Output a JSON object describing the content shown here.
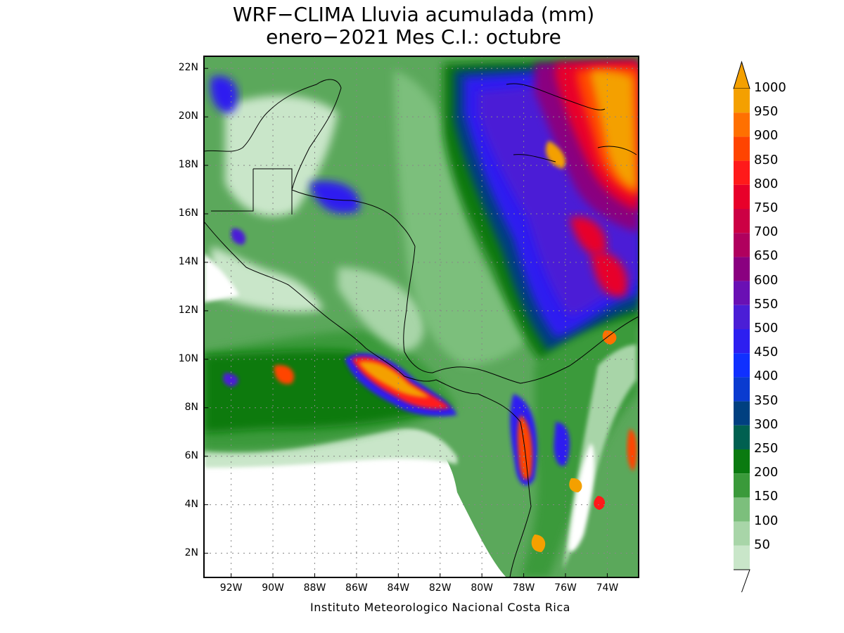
{
  "title": {
    "line1": "WRF−CLIMA Lluvia acumulada (mm)",
    "line2": "enero−2021 Mes C.I.: octubre"
  },
  "axes": {
    "lat_labels": [
      "22N",
      "20N",
      "18N",
      "16N",
      "14N",
      "12N",
      "10N",
      "8N",
      "6N",
      "4N",
      "2N"
    ],
    "lon_labels": [
      "92W",
      "90W",
      "88W",
      "86W",
      "84W",
      "82W",
      "80W",
      "78W",
      "76W",
      "74W"
    ],
    "lat_values": [
      22,
      20,
      18,
      16,
      14,
      12,
      10,
      8,
      6,
      4,
      2
    ],
    "lon_values": [
      -92,
      -90,
      -88,
      -86,
      -84,
      -82,
      -80,
      -78,
      -76,
      -74
    ],
    "lat_range": [
      1,
      22.5
    ],
    "lon_range": [
      -93.3,
      -72.5
    ],
    "grid": "dotted"
  },
  "credit": "Instituto Meteorologico Nacional Costa Rica",
  "colorbar": {
    "levels": [
      "1000",
      "950",
      "900",
      "850",
      "800",
      "750",
      "700",
      "650",
      "600",
      "550",
      "500",
      "450",
      "400",
      "350",
      "300",
      "250",
      "200",
      "150",
      "100",
      "50"
    ],
    "colors": [
      "#f4a000",
      "#ff7000",
      "#ff4400",
      "#ff1a1a",
      "#e8002a",
      "#cc0044",
      "#b0005e",
      "#8a0080",
      "#6a10b4",
      "#4b1ed6",
      "#2d1ff0",
      "#1030ff",
      "#0a3bd0",
      "#004080",
      "#006050",
      "#0a7a10",
      "#3a9a3a",
      "#7cbf7c",
      "#a8d5a8",
      "#c9e6c9"
    ],
    "extend_top_color": "#f4a000"
  }
}
